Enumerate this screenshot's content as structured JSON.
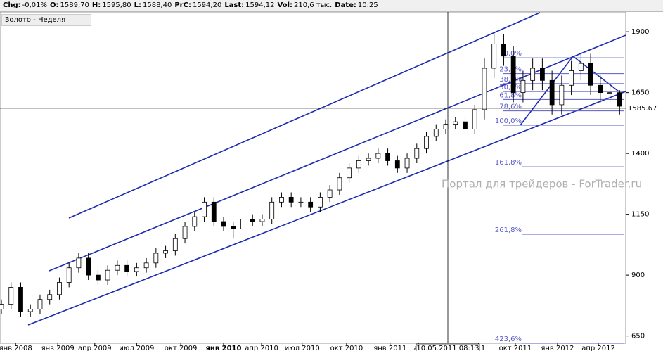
{
  "header": [
    {
      "label": "Chg:",
      "value": "-0,01%"
    },
    {
      "label": "O:",
      "value": "1589,70"
    },
    {
      "label": "H:",
      "value": "1595,80"
    },
    {
      "label": "L:",
      "value": "1588,40"
    },
    {
      "label": "PrC:",
      "value": "1594,20"
    },
    {
      "label": "Last:",
      "value": "1594,12"
    },
    {
      "label": "Vol:",
      "value": "210,6 тыс."
    },
    {
      "label": "Date:",
      "value": "10:25"
    }
  ],
  "tab": "Золото - Неделя",
  "chart_data": {
    "type": "candlestick",
    "watermark": "Портал для трейдеров - ForTrader.ru",
    "crosshair_label": "10.05.2011 08:13",
    "price_line": 1585.67,
    "xlim": [
      -0.44,
      193.9
    ],
    "xticks": [
      {
        "value": 4.4,
        "label": "янв 2008"
      },
      {
        "value": 17.5,
        "label": "янв 2009"
      },
      {
        "value": 29,
        "label": "апр 2009"
      },
      {
        "value": 42,
        "label": "июл 2009"
      },
      {
        "value": 55.7,
        "label": "окт 2009"
      },
      {
        "value": 69,
        "label": "янв 2010"
      },
      {
        "value": 80.8,
        "label": "апр 2010"
      },
      {
        "value": 93.4,
        "label": "июл 2010"
      },
      {
        "value": 107.2,
        "label": "окт 2010"
      },
      {
        "value": 120.7,
        "label": "янв 2011"
      },
      {
        "value": 129.5,
        "label": "ап"
      },
      {
        "value": 148.2,
        "label": "011"
      },
      {
        "value": 159.6,
        "label": "окт 2011"
      },
      {
        "value": 172.7,
        "label": "янв 2012"
      },
      {
        "value": 185.4,
        "label": "апр 2012"
      }
    ],
    "ylim": [
      620,
      1990
    ],
    "yticks": [
      650,
      900,
      1150,
      1400,
      1650,
      1900
    ],
    "fib_levels": [
      {
        "value": 1793,
        "label": "0,0%"
      },
      {
        "value": 1728,
        "label": "23,6%"
      },
      {
        "value": 1687,
        "label": "38,2%"
      },
      {
        "value": 1654.5,
        "label": "50,0%"
      },
      {
        "value": 1622,
        "label": "61,8%"
      },
      {
        "value": 1575,
        "label": "78,6%"
      },
      {
        "value": 1516,
        "label": "100,0%"
      },
      {
        "value": 1345,
        "label": "161,8%"
      },
      {
        "value": 1068,
        "label": "261,8%"
      },
      {
        "value": 620,
        "label": "423,6%"
      }
    ],
    "x": [
      0,
      3,
      6,
      9,
      12,
      15,
      18,
      21,
      24,
      27,
      30,
      33,
      36,
      39,
      42,
      45,
      48,
      51,
      54,
      57,
      60,
      63,
      66,
      69,
      72,
      75,
      78,
      81,
      84,
      87,
      90,
      93,
      96,
      99,
      102,
      105,
      108,
      111,
      114,
      117,
      120,
      123,
      126,
      129,
      132,
      135,
      138,
      141,
      144,
      147,
      150,
      153,
      156,
      159,
      162,
      165,
      168,
      171,
      174,
      177,
      180,
      183,
      186,
      189,
      192
    ],
    "open": [
      760,
      780,
      850,
      750,
      760,
      800,
      820,
      870,
      930,
      970,
      900,
      880,
      920,
      940,
      915,
      930,
      950,
      990,
      1000,
      1050,
      1100,
      1140,
      1200,
      1120,
      1100,
      1090,
      1130,
      1120,
      1130,
      1200,
      1220,
      1200,
      1200,
      1180,
      1220,
      1250,
      1300,
      1340,
      1370,
      1380,
      1400,
      1370,
      1340,
      1380,
      1420,
      1470,
      1500,
      1520,
      1530,
      1500,
      1580,
      1750,
      1850,
      1800,
      1650,
      1700,
      1750,
      1700,
      1600,
      1680,
      1740,
      1770,
      1680,
      1650,
      1650
    ],
    "high": [
      800,
      870,
      870,
      780,
      820,
      840,
      890,
      950,
      990,
      990,
      920,
      940,
      960,
      960,
      950,
      970,
      1010,
      1020,
      1070,
      1120,
      1160,
      1220,
      1220,
      1140,
      1120,
      1150,
      1150,
      1150,
      1220,
      1240,
      1240,
      1220,
      1220,
      1240,
      1270,
      1320,
      1360,
      1390,
      1400,
      1420,
      1420,
      1390,
      1400,
      1440,
      1490,
      1520,
      1540,
      1550,
      1550,
      1600,
      1790,
      1900,
      1890,
      1840,
      1740,
      1790,
      1790,
      1740,
      1720,
      1780,
      1810,
      1810,
      1720,
      1690,
      1660
    ],
    "low": [
      740,
      760,
      730,
      730,
      740,
      780,
      800,
      850,
      910,
      880,
      860,
      860,
      900,
      895,
      895,
      910,
      930,
      970,
      980,
      1030,
      1080,
      1120,
      1100,
      1080,
      1050,
      1070,
      1100,
      1100,
      1110,
      1180,
      1180,
      1180,
      1160,
      1160,
      1200,
      1230,
      1280,
      1320,
      1350,
      1360,
      1350,
      1320,
      1320,
      1360,
      1400,
      1450,
      1480,
      1500,
      1480,
      1480,
      1540,
      1710,
      1760,
      1610,
      1610,
      1660,
      1660,
      1560,
      1560,
      1640,
      1700,
      1640,
      1610,
      1610,
      1560
    ],
    "close": [
      780,
      850,
      750,
      760,
      800,
      820,
      870,
      930,
      970,
      900,
      880,
      920,
      940,
      915,
      930,
      950,
      990,
      1000,
      1050,
      1100,
      1140,
      1200,
      1120,
      1100,
      1090,
      1130,
      1120,
      1130,
      1200,
      1220,
      1200,
      1200,
      1180,
      1220,
      1250,
      1300,
      1340,
      1370,
      1380,
      1400,
      1370,
      1340,
      1380,
      1420,
      1470,
      1500,
      1520,
      1530,
      1500,
      1580,
      1750,
      1850,
      1800,
      1650,
      1700,
      1750,
      1700,
      1600,
      1680,
      1740,
      1770,
      1680,
      1650,
      1650,
      1594
    ]
  }
}
